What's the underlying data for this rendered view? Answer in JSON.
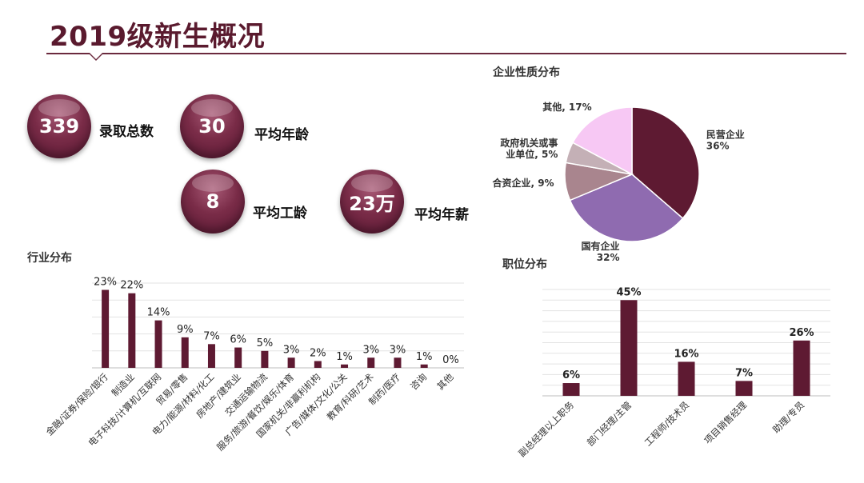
{
  "title": "2019级新生概况",
  "stats": [
    {
      "value": "339",
      "label": "录取总数"
    },
    {
      "value": "30",
      "label": "平均年龄"
    },
    {
      "value": "8",
      "label": "平均工龄"
    },
    {
      "value": "23万",
      "label": "平均年薪"
    }
  ],
  "sections": {
    "industry": "行业分布",
    "enterprise": "企业性质分布",
    "position": "职位分布"
  },
  "colors": {
    "bar": "#5e1a32",
    "brand": "#5a1a2e"
  },
  "chart_data": [
    {
      "type": "bar",
      "title": "行业分布",
      "categories": [
        "金融/证券/保险/银行",
        "制造业",
        "电子科技/计算机/互联网",
        "贸易/零售",
        "电力/能源/材料/化工",
        "房地产/建筑业",
        "交通运输物流",
        "服务/旅游/餐饮/娱乐/体育",
        "国家机关/非赢利机构",
        "广告/媒体/文化/公关",
        "教育/科研/艺术",
        "制药/医疗",
        "咨询",
        "其他"
      ],
      "values": [
        23,
        22,
        14,
        9,
        7,
        6,
        5,
        3,
        2,
        1,
        3,
        3,
        1,
        0
      ],
      "value_labels": [
        "23%",
        "22%",
        "14%",
        "9%",
        "7%",
        "6%",
        "5%",
        "3%",
        "2%",
        "1%",
        "3%",
        "3%",
        "1%",
        "0%"
      ],
      "ylim": [
        0,
        25
      ],
      "grid": true
    },
    {
      "type": "pie",
      "title": "企业性质分布",
      "slices": [
        {
          "label": "民营企业",
          "value": 36,
          "text": "36%",
          "color": "#5e1a32"
        },
        {
          "label": "国有企业",
          "value": 32,
          "text": "32%",
          "color": "#8f6bb0"
        },
        {
          "label": "合资企业",
          "value": 9,
          "text": "9%",
          "color": "#a9858e"
        },
        {
          "label": "政府机关或事业单位",
          "value": 5,
          "text": "5%",
          "color": "#c4b0b6"
        },
        {
          "label": "其他",
          "value": 17,
          "text": "17%",
          "color": "#f7c8f4"
        }
      ],
      "slice_labels": [
        "民营企业\n36%",
        "国有企业\n32%",
        "合资企业, 9%",
        "政府机关或事\n业单位, 5%",
        "其他, 17%"
      ]
    },
    {
      "type": "bar",
      "title": "职位分布",
      "categories": [
        "副总经理以上职务",
        "部门经理/主管",
        "工程师/技术员",
        "项目销售经理",
        "助理/专员"
      ],
      "values": [
        6,
        45,
        16,
        7,
        26
      ],
      "value_labels": [
        "6%",
        "45%",
        "16%",
        "7%",
        "26%"
      ],
      "ylim": [
        0,
        50
      ],
      "grid": true
    }
  ]
}
